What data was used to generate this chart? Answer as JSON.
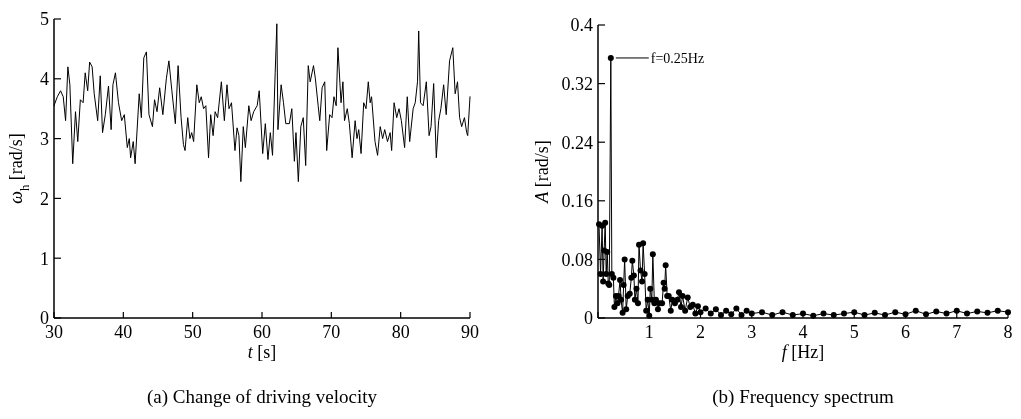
{
  "chart_data": [
    {
      "type": "line",
      "title": "(a) Change of driving velocity",
      "xlabel": "t [s]",
      "ylabel": "ω$_{h}$ [rad/s]",
      "xlim": [
        30,
        90
      ],
      "ylim": [
        0,
        5
      ],
      "xticks": [
        30,
        40,
        50,
        60,
        70,
        80,
        90
      ],
      "yticks": [
        0,
        1,
        2,
        3,
        4,
        5
      ],
      "grid": false,
      "series": [
        {
          "color": "#000000",
          "x": [
            30.0,
            30.48,
            30.95,
            31.33,
            31.67,
            32.0,
            32.29,
            32.7,
            33.1,
            33.43,
            33.8,
            34.2,
            34.5,
            34.86,
            35.14,
            35.5,
            35.8,
            36.3,
            36.67,
            37.0,
            37.4,
            37.86,
            38.24,
            38.5,
            38.86,
            39.3,
            39.76,
            40.14,
            40.57,
            40.86,
            41.05,
            41.43,
            41.7,
            42.29,
            42.6,
            42.95,
            43.33,
            43.7,
            44.2,
            44.5,
            44.86,
            45.24,
            45.7,
            46.2,
            46.57,
            47.0,
            47.5,
            47.9,
            48.33,
            48.67,
            48.9,
            49.29,
            49.6,
            49.86,
            50.14,
            50.6,
            50.95,
            51.24,
            51.57,
            51.9,
            52.29,
            52.6,
            52.95,
            53.24,
            53.6,
            54.14,
            54.57,
            54.95,
            55.24,
            55.6,
            56.1,
            56.4,
            56.67,
            56.95,
            57.3,
            57.6,
            58.1,
            58.43,
            58.8,
            59.3,
            59.6,
            60.1,
            60.48,
            60.86,
            61.2,
            61.52,
            61.9,
            62.14,
            62.3,
            62.76,
            63.1,
            63.43,
            63.95,
            64.3,
            64.67,
            64.9,
            65.24,
            65.6,
            65.95,
            66.3,
            66.67,
            66.95,
            67.43,
            67.7,
            68.1,
            68.33,
            68.67,
            69.05,
            69.33,
            69.76,
            70.1,
            70.38,
            70.7,
            70.95,
            71.4,
            71.67,
            71.9,
            72.3,
            72.6,
            73.0,
            73.43,
            73.7,
            73.95,
            74.29,
            74.67,
            75.0,
            75.33,
            75.6,
            75.8,
            76.3,
            76.67,
            77.05,
            77.4,
            77.7,
            78.1,
            78.48,
            78.7,
            79.05,
            79.43,
            79.76,
            80.1,
            80.57,
            80.95,
            81.3,
            81.8,
            82.1,
            82.43,
            82.6,
            82.86,
            83.24,
            83.7,
            84.1,
            84.38,
            84.76,
            85.14,
            85.48,
            85.8,
            86.2,
            86.57,
            87.05,
            87.52,
            87.86,
            88.2,
            88.5,
            88.8,
            89.2,
            89.52,
            89.67,
            90.0
          ],
          "values": [
            3.55,
            3.7,
            3.8,
            3.7,
            3.3,
            4.2,
            3.9,
            2.58,
            3.45,
            2.95,
            3.65,
            3.6,
            4.1,
            3.8,
            4.28,
            4.2,
            3.75,
            3.3,
            4.05,
            3.1,
            3.4,
            3.88,
            3.15,
            3.9,
            4.1,
            3.6,
            3.3,
            3.4,
            2.85,
            3.0,
            2.68,
            2.95,
            2.58,
            3.75,
            3.35,
            4.35,
            4.45,
            3.4,
            3.2,
            3.65,
            3.45,
            3.85,
            3.4,
            4.0,
            4.3,
            3.8,
            3.25,
            4.22,
            3.35,
            2.9,
            2.8,
            3.35,
            3.0,
            3.1,
            2.95,
            3.9,
            3.6,
            3.7,
            3.5,
            3.55,
            2.68,
            3.4,
            3.05,
            3.45,
            3.35,
            3.95,
            3.3,
            3.9,
            3.5,
            3.6,
            2.8,
            3.18,
            3.05,
            2.28,
            3.2,
            2.85,
            3.55,
            3.3,
            3.45,
            3.55,
            3.8,
            2.75,
            3.25,
            2.65,
            3.1,
            2.72,
            4.1,
            4.92,
            3.15,
            3.9,
            3.6,
            3.25,
            3.25,
            3.5,
            2.62,
            3.1,
            2.28,
            3.2,
            3.35,
            2.55,
            4.22,
            3.95,
            4.22,
            4.0,
            3.55,
            3.3,
            3.85,
            3.95,
            2.8,
            3.4,
            3.35,
            3.7,
            3.55,
            4.52,
            3.6,
            3.95,
            3.3,
            3.5,
            3.25,
            2.68,
            3.3,
            3.0,
            3.15,
            2.75,
            3.6,
            3.5,
            3.95,
            3.6,
            3.7,
            2.95,
            2.72,
            3.2,
            3.0,
            3.15,
            2.95,
            3.1,
            2.8,
            3.6,
            3.35,
            3.5,
            3.3,
            2.85,
            3.7,
            2.95,
            3.5,
            3.6,
            3.95,
            4.8,
            3.6,
            3.55,
            3.95,
            3.05,
            3.2,
            3.92,
            2.68,
            3.3,
            3.5,
            3.9,
            3.4,
            4.3,
            4.52,
            3.75,
            3.95,
            3.35,
            3.2,
            3.35,
            3.1,
            3.05,
            3.7
          ]
        }
      ]
    },
    {
      "type": "line",
      "title": "(b) Frequency spectrum",
      "xlabel": "f [Hz]",
      "ylabel": "A [rad/s]",
      "xlim": [
        0,
        8
      ],
      "ylim": [
        0,
        0.4
      ],
      "xticks": [
        {
          "value": 0,
          "label": null
        },
        1,
        2,
        3,
        4,
        5,
        6,
        7,
        8
      ],
      "yticks": [
        0,
        0.08,
        0.16,
        0.24,
        0.32,
        0.4
      ],
      "grid": false,
      "marker": "circle",
      "annotations": [
        {
          "text": "f=0.25Hz",
          "x": 0.25,
          "y": 0.355
        }
      ],
      "series": [
        {
          "color": "#000000",
          "x": [
            0.02,
            0.05,
            0.08,
            0.1,
            0.12,
            0.14,
            0.16,
            0.18,
            0.2,
            0.22,
            0.25,
            0.27,
            0.3,
            0.32,
            0.35,
            0.38,
            0.4,
            0.43,
            0.45,
            0.48,
            0.5,
            0.52,
            0.55,
            0.58,
            0.62,
            0.65,
            0.67,
            0.7,
            0.72,
            0.75,
            0.78,
            0.8,
            0.83,
            0.86,
            0.88,
            0.91,
            0.94,
            0.97,
            1.0,
            1.02,
            1.05,
            1.07,
            1.1,
            1.13,
            1.17,
            1.2,
            1.25,
            1.28,
            1.3,
            1.32,
            1.35,
            1.38,
            1.42,
            1.45,
            1.5,
            1.55,
            1.58,
            1.62,
            1.65,
            1.7,
            1.75,
            1.8,
            1.85,
            1.9,
            1.95,
            2.0,
            2.1,
            2.2,
            2.3,
            2.4,
            2.5,
            2.6,
            2.7,
            2.8,
            2.9,
            3.0,
            3.2,
            3.4,
            3.6,
            3.8,
            4.0,
            4.2,
            4.4,
            4.6,
            4.8,
            5.0,
            5.2,
            5.4,
            5.6,
            5.8,
            6.0,
            6.2,
            6.4,
            6.6,
            6.8,
            7.0,
            7.2,
            7.4,
            7.6,
            7.8,
            8.0
          ],
          "values": [
            0.128,
            0.06,
            0.126,
            0.05,
            0.092,
            0.13,
            0.06,
            0.09,
            0.047,
            0.045,
            0.355,
            0.06,
            0.055,
            0.015,
            0.03,
            0.02,
            0.03,
            0.052,
            0.025,
            0.007,
            0.045,
            0.08,
            0.012,
            0.03,
            0.033,
            0.055,
            0.078,
            0.058,
            0.025,
            0.04,
            0.02,
            0.1,
            0.065,
            0.05,
            0.102,
            0.06,
            0.01,
            0.025,
            0.003,
            0.04,
            0.025,
            0.087,
            0.02,
            0.025,
            0.012,
            0.02,
            0.02,
            0.048,
            0.04,
            0.072,
            0.03,
            0.03,
            0.01,
            0.025,
            0.02,
            0.025,
            0.035,
            0.015,
            0.03,
            0.01,
            0.028,
            0.015,
            0.018,
            0.006,
            0.016,
            0.008,
            0.013,
            0.006,
            0.012,
            0.004,
            0.01,
            0.005,
            0.013,
            0.004,
            0.01,
            0.006,
            0.008,
            0.004,
            0.008,
            0.004,
            0.006,
            0.003,
            0.006,
            0.004,
            0.006,
            0.008,
            0.004,
            0.007,
            0.004,
            0.008,
            0.005,
            0.01,
            0.005,
            0.009,
            0.006,
            0.01,
            0.006,
            0.009,
            0.007,
            0.01,
            0.008
          ]
        }
      ]
    }
  ]
}
